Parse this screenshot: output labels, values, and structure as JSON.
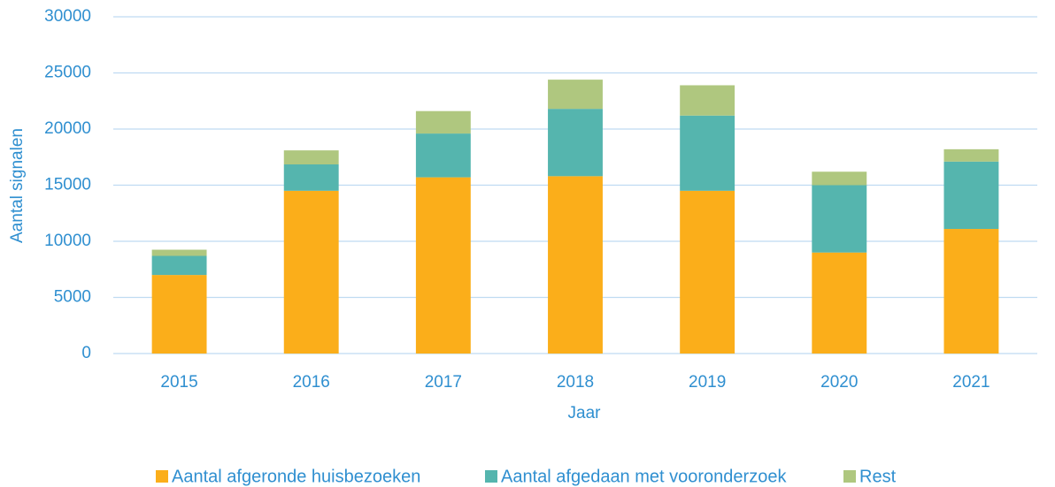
{
  "chart_data": {
    "type": "bar",
    "stacked": true,
    "x_label": "Jaar",
    "y_label": "Aantal signalen",
    "categories": [
      "2015",
      "2016",
      "2017",
      "2018",
      "2019",
      "2020",
      "2021"
    ],
    "series": [
      {
        "name": "Aantal afgeronde huisbezoeken",
        "color": "#fbae1a",
        "values": [
          7000,
          14500,
          15700,
          15800,
          14500,
          9000,
          11100
        ]
      },
      {
        "name": "Aantal afgedaan met vooronderzoek",
        "color": "#55b5ae",
        "values": [
          1700,
          2350,
          3900,
          6000,
          6700,
          6000,
          6000
        ]
      },
      {
        "name": "Rest",
        "color": "#afc77f",
        "values": [
          550,
          1250,
          2000,
          2600,
          2700,
          1200,
          1100
        ]
      }
    ],
    "ylim": [
      0,
      30000
    ],
    "yticks": [
      0,
      5000,
      10000,
      15000,
      20000,
      25000,
      30000
    ],
    "grid": true,
    "legend": "bottom"
  }
}
